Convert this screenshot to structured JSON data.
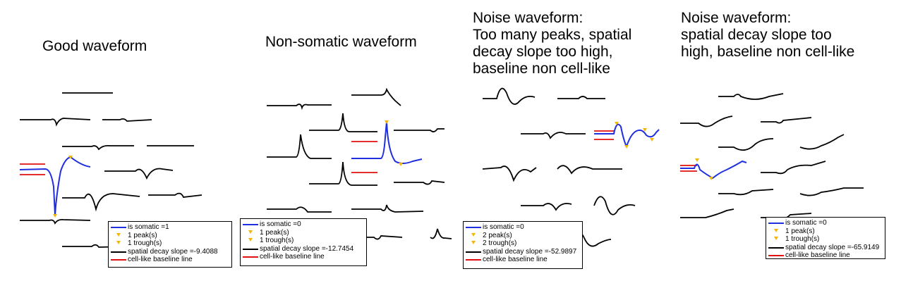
{
  "colors": {
    "trace": "#000000",
    "somatic_trace": "#1f2fe0",
    "baseline": "#e01010",
    "marker": "#f2b705"
  },
  "panels": [
    {
      "title_lines": [
        "Good waveform"
      ],
      "legend": {
        "somatic": "is somatic =1",
        "peaks": "1 peak(s)",
        "troughs": "1 trough(s)",
        "decay": "spatial decay slope =-9.4088",
        "baseline": "cell-like baseline line"
      }
    },
    {
      "title_lines": [
        "Non-somatic waveform"
      ],
      "legend": {
        "somatic": "is somatic =0",
        "peaks": "1 peak(s)",
        "troughs": "1 trough(s)",
        "decay": "spatial decay slope =-12.7454",
        "baseline": "cell-like baseline line"
      }
    },
    {
      "title_lines": [
        "Noise waveform:",
        "Too many peaks, spatial",
        "decay slope too high,",
        "baseline non cell-like"
      ],
      "legend": {
        "somatic": "is somatic =0",
        "peaks": "2 peak(s)",
        "troughs": "2 trough(s)",
        "decay": "spatial decay slope =-52.9897",
        "baseline": "cell-like baseline line"
      }
    },
    {
      "title_lines": [
        "Noise waveform:",
        "spatial decay slope too",
        "high, baseline non cell-like"
      ],
      "legend": {
        "somatic": "is somatic =0",
        "peaks": "1 peak(s)",
        "troughs": "1 trough(s)",
        "decay": "spatial decay slope =-65.9149",
        "baseline": "cell-like baseline line"
      }
    }
  ]
}
